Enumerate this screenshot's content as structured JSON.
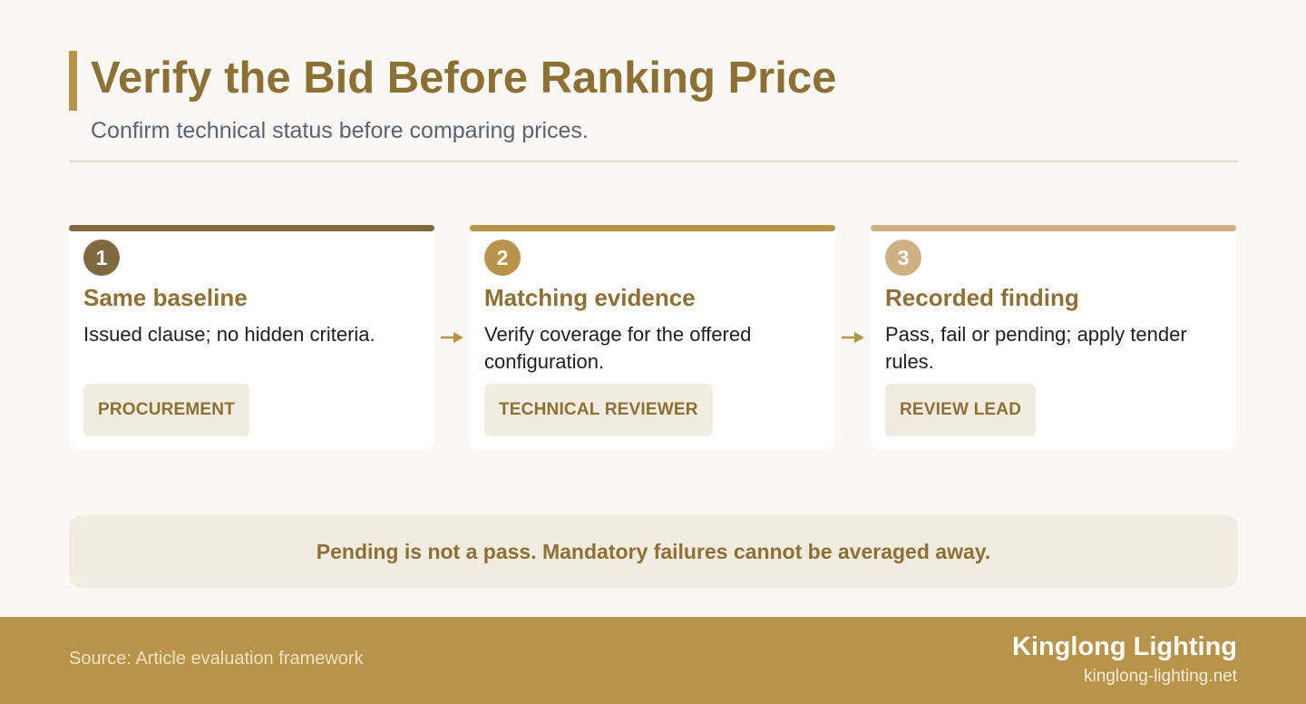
{
  "header": {
    "title": "Verify the Bid Before Ranking Price",
    "subtitle": "Confirm technical status before comparing prices."
  },
  "steps": [
    {
      "number": "1",
      "title": "Same baseline",
      "body": "Issued clause; no hidden criteria.",
      "role": "PROCUREMENT",
      "accent_color": "#7f6a40"
    },
    {
      "number": "2",
      "title": "Matching evidence",
      "body": "Verify coverage for the offered configuration.",
      "role": "TECHNICAL REVIEWER",
      "accent_color": "#b8944a"
    },
    {
      "number": "3",
      "title": "Recorded finding",
      "body": "Pass, fail or pending; apply tender rules.",
      "role": "REVIEW LEAD",
      "accent_color": "#cdb183"
    }
  ],
  "note": "Pending is not a pass. Mandatory failures cannot be averaged away.",
  "footer": {
    "source": "Source: Article evaluation framework",
    "brand": "Kinglong Lighting",
    "url": "kinglong-lighting.net"
  },
  "colors": {
    "primary": "#8c7034",
    "gold": "#b8944a",
    "background": "#faf8f4",
    "tag_background": "#f2ebe0"
  }
}
